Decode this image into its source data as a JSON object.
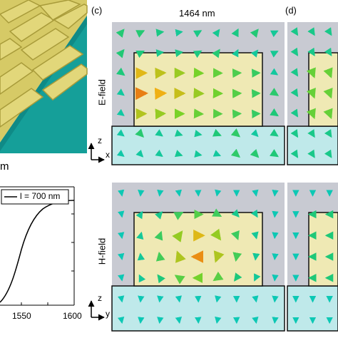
{
  "labels": {
    "panel_c": "(c)",
    "panel_d": "(d)",
    "wavelength": "1464 nm",
    "efield": "E-field",
    "hfield": "H-field",
    "unit_fragment": "m",
    "legend": "l = 700 nm",
    "tick_1550": "1550",
    "tick_1600": "1600",
    "axis_z": "z",
    "axis_x": "x",
    "axis_y": "y"
  },
  "colors": {
    "gold": "#d8cc6a",
    "teal": "#17a8a0",
    "sim_bg": "#c8cad2",
    "substrate": "#bfe9ea",
    "resonator": "#efe9b4"
  }
}
